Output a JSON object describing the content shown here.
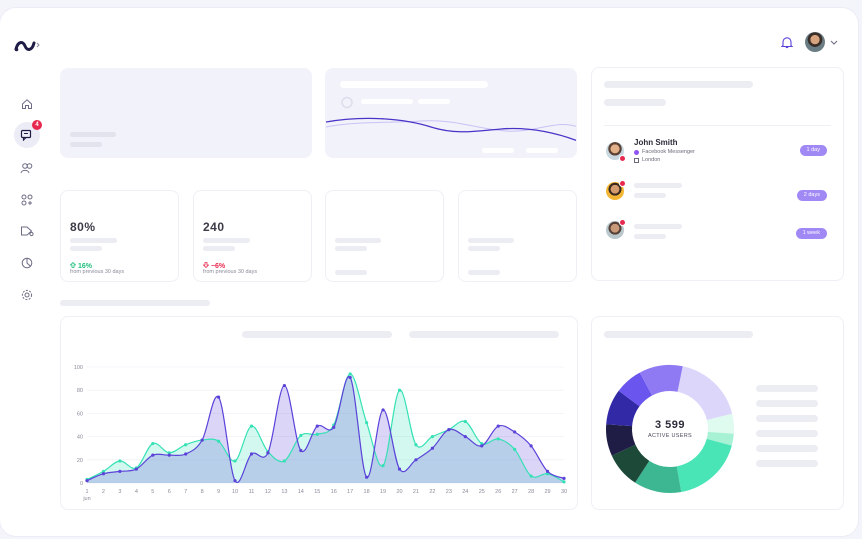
{
  "nav": {
    "items": [
      "home",
      "messages",
      "contacts",
      "apps",
      "campaigns",
      "analytics",
      "settings"
    ],
    "messages_badge": "4"
  },
  "stats": [
    {
      "value": "80%",
      "change": "16%",
      "direction": "up",
      "note": "from previous 30 days"
    },
    {
      "value": "240",
      "change": "−6%",
      "direction": "down",
      "note": "from previous 30 days"
    }
  ],
  "contact": {
    "name": "John Smith",
    "channel": "Facebook Messenger",
    "location": "London",
    "time": "1 day"
  },
  "contacts_times": [
    "2 days",
    "1 week"
  ],
  "donut": {
    "value": "3 599",
    "label": "ACTIVE USERS",
    "segments": [
      {
        "value": 18,
        "color": "#dcd6fb"
      },
      {
        "value": 5,
        "color": "#dffbef"
      },
      {
        "value": 3,
        "color": "#a7f2d5"
      },
      {
        "value": 18,
        "color": "#49e5b6"
      },
      {
        "value": 12,
        "color": "#3cb791"
      },
      {
        "value": 9,
        "color": "#1d4939"
      },
      {
        "value": 8,
        "color": "#1f1d46"
      },
      {
        "value": 9,
        "color": "#3229a6"
      },
      {
        "value": 7,
        "color": "#6a56ee"
      },
      {
        "value": 11,
        "color": "#8f7af4"
      }
    ]
  },
  "chart_data": {
    "type": "area",
    "x": [
      1,
      2,
      3,
      4,
      5,
      6,
      7,
      8,
      9,
      10,
      11,
      12,
      13,
      14,
      15,
      16,
      17,
      18,
      19,
      20,
      21,
      22,
      23,
      24,
      25,
      26,
      27,
      28,
      29,
      30
    ],
    "x_first_sublabel": "jun",
    "ylim": [
      0,
      100
    ],
    "yticks": [
      0,
      20,
      40,
      60,
      80,
      100
    ],
    "series": [
      {
        "color": "#35e1b5",
        "values": [
          3,
          10,
          19,
          13,
          34,
          26,
          33,
          37,
          36,
          19,
          49,
          27,
          19,
          41,
          42,
          50,
          94,
          52,
          15,
          80,
          33,
          40,
          46,
          53,
          34,
          38,
          29,
          6,
          8,
          1
        ]
      },
      {
        "color": "#5b42d9",
        "values": [
          2,
          8,
          10,
          12,
          24,
          24,
          25,
          37,
          74,
          2,
          25,
          26,
          84,
          28,
          49,
          48,
          91,
          5,
          63,
          12,
          20,
          30,
          46,
          40,
          32,
          49,
          44,
          32,
          10,
          4
        ]
      }
    ]
  }
}
